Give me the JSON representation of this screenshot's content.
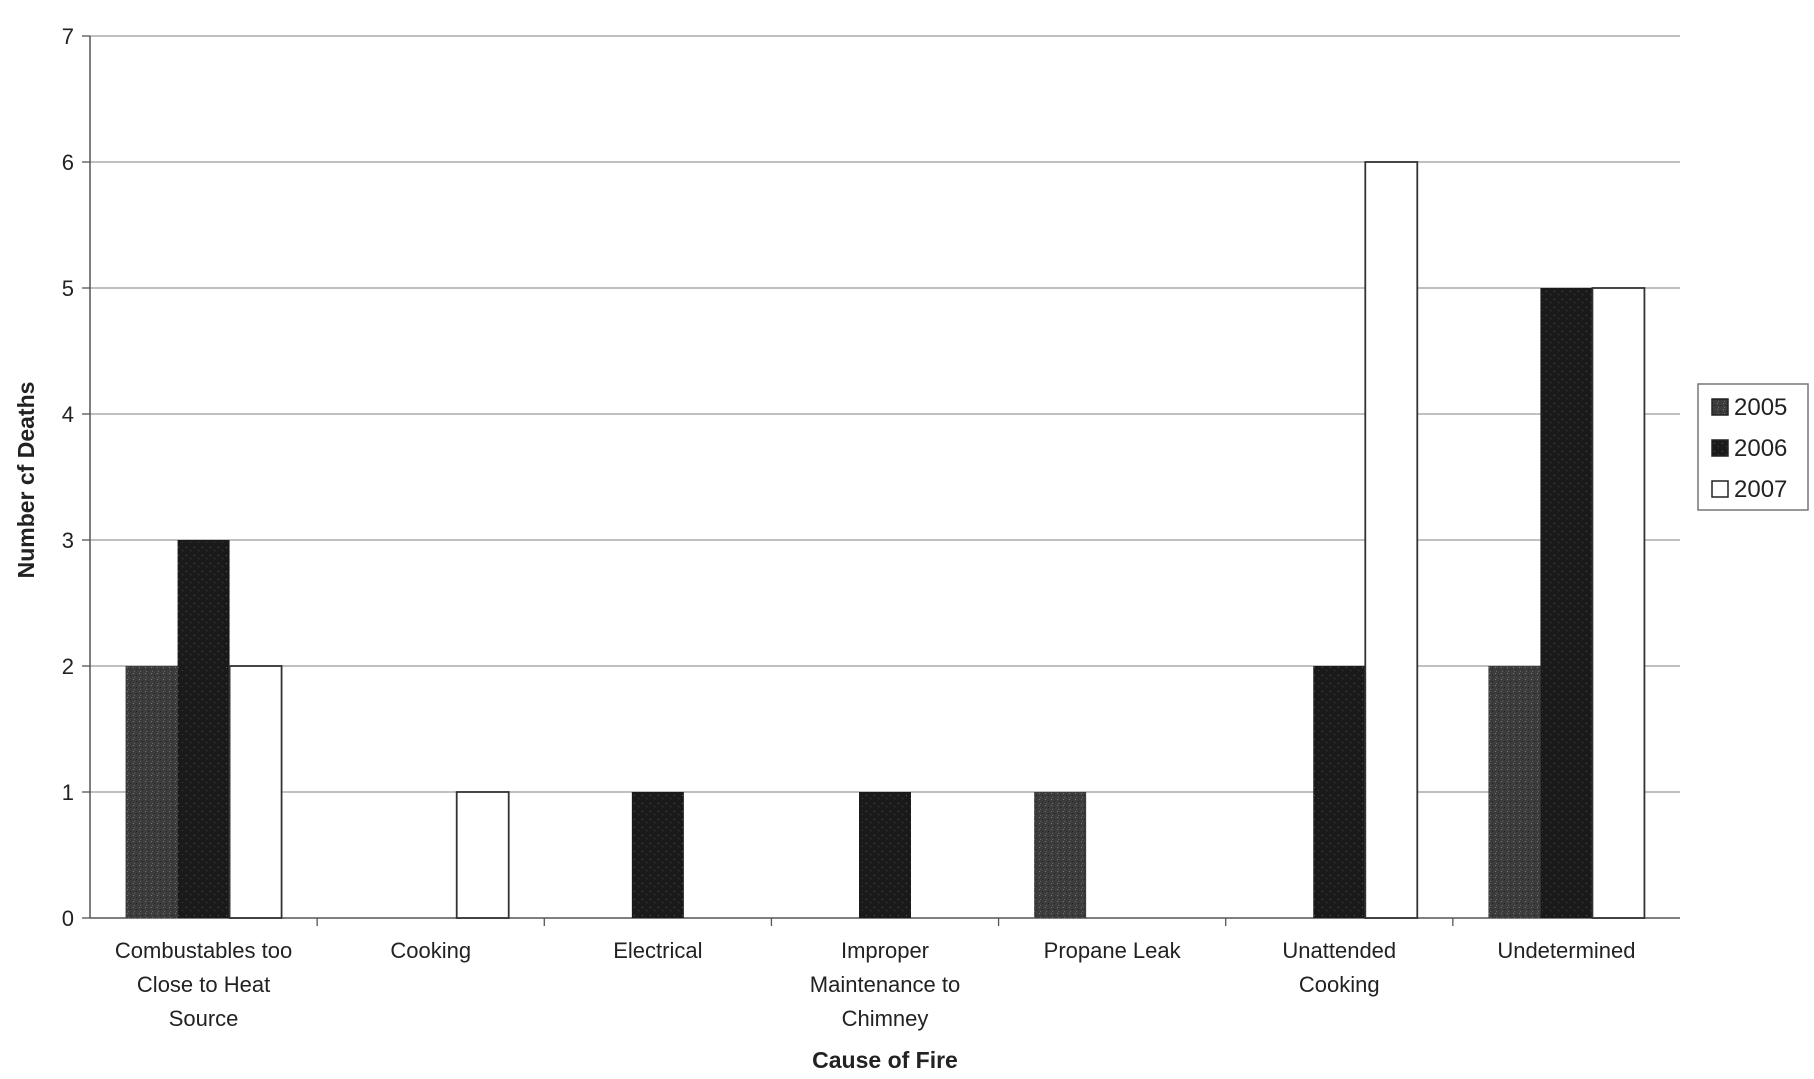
{
  "chart_data": {
    "type": "bar",
    "categories": [
      "Combustables too Close to Heat Source",
      "Cooking",
      "Electrical",
      "Improper Maintenance to Chimney",
      "Propane Leak",
      "Unattended Cooking",
      "Undetermined"
    ],
    "category_lines": [
      [
        "Combustables too",
        "Close to Heat",
        "Source"
      ],
      [
        "Cooking"
      ],
      [
        "Electrical"
      ],
      [
        "Improper",
        "Maintenance to",
        "Chimney"
      ],
      [
        "Propane Leak"
      ],
      [
        "Unattended",
        "Cooking"
      ],
      [
        "Undetermined"
      ]
    ],
    "series": [
      {
        "name": "2005",
        "values": [
          2,
          0,
          0,
          0,
          1,
          0,
          2
        ],
        "color": "#4a4a4a"
      },
      {
        "name": "2006",
        "values": [
          3,
          0,
          1,
          1,
          0,
          2,
          5
        ],
        "color": "#1a1a1a"
      },
      {
        "name": "2007",
        "values": [
          2,
          1,
          0,
          0,
          0,
          6,
          5
        ],
        "color": "#ffffff"
      }
    ],
    "title": "",
    "xlabel": "Cause of Fire",
    "ylabel": "Number cf Deaths",
    "ylim": [
      0,
      7
    ],
    "yticks": [
      "0",
      "1",
      "2",
      "3",
      "4",
      "5",
      "6",
      "7"
    ],
    "grid": true,
    "legend_position": "right"
  }
}
